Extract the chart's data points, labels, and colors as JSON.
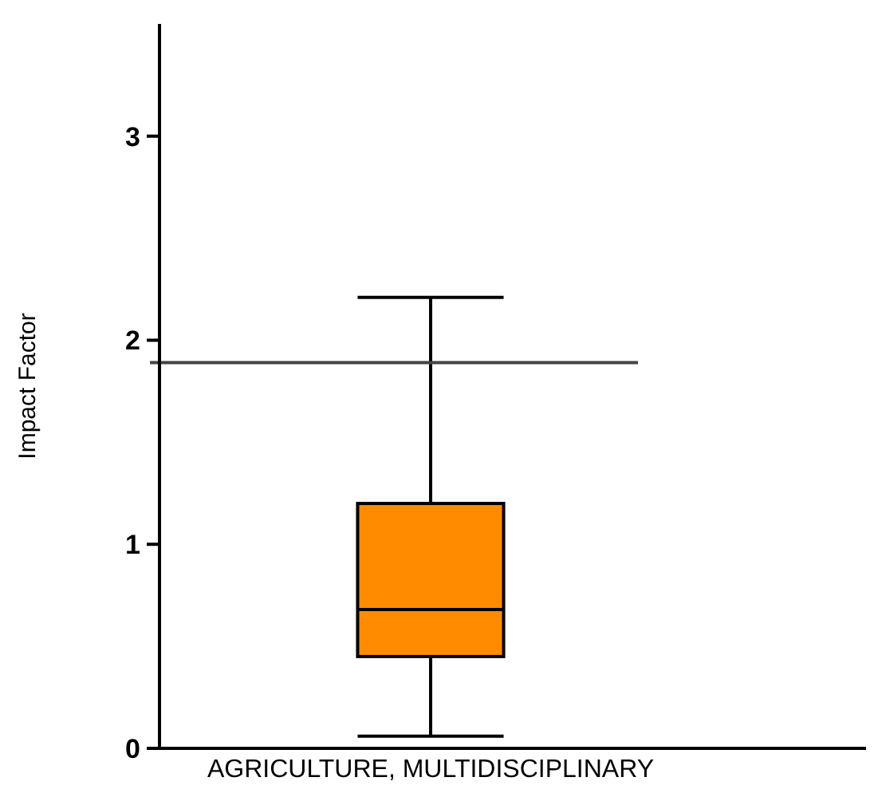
{
  "chart_data": {
    "type": "box",
    "ylabel": "Impact Factor",
    "categories": [
      "AGRICULTURE, MULTIDISCIPLINARY"
    ],
    "boxes": [
      {
        "low": 0.06,
        "q1": 0.45,
        "median": 0.68,
        "q3": 1.2,
        "high": 2.21
      }
    ],
    "color": "#ff8c00",
    "ylim": [
      0,
      3.55
    ],
    "yticks": [
      0,
      1,
      2,
      3
    ],
    "ref_lines": [
      {
        "axis": "y",
        "value": 1.89,
        "color": "#444444"
      }
    ],
    "grid": false
  }
}
